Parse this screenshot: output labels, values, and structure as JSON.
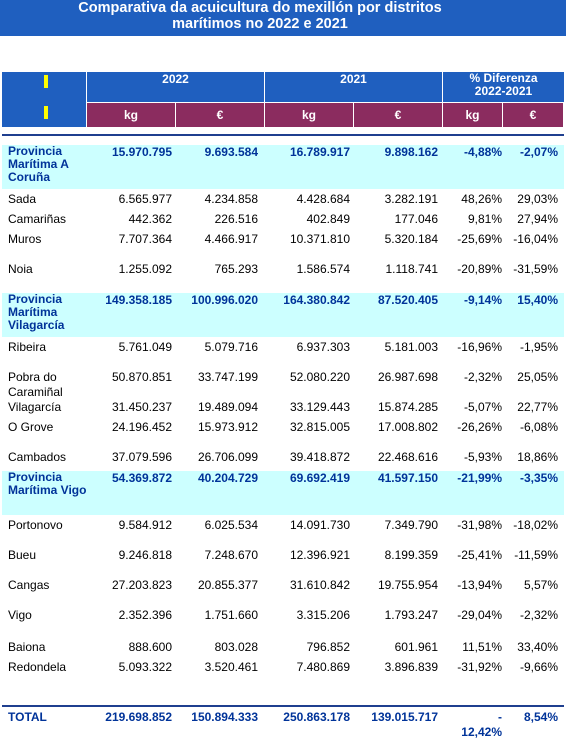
{
  "title": {
    "line1": "Comparativa da acuicultura do mexillón por distritos",
    "line2": "marítimos no 2022 e 2021"
  },
  "header": {
    "year_2022": "2022",
    "year_2021": "2021",
    "diff_line1": "% Diferenza",
    "diff_line2": "2022-2021",
    "kg": "kg",
    "eur": "€"
  },
  "colors": {
    "header_blue": "#1f5fbf",
    "unit_purple": "#8b2c5f",
    "province_bg": "#ccffff",
    "province_text": "#003399",
    "marker_yellow": "#ffff00"
  },
  "rows": [
    {
      "name": "Provincia Marítima A Coruña",
      "type": "province",
      "kg2022": "15.970.795",
      "eur2022": "9.693.584",
      "kg2021": "16.789.917",
      "eur2021": "9.898.162",
      "pct_kg": "-4,88%",
      "pct_eur": "-2,07%"
    },
    {
      "name": "Sada",
      "type": "district",
      "kg2022": "6.565.977",
      "eur2022": "4.234.858",
      "kg2021": "4.428.684",
      "eur2021": "3.282.191",
      "pct_kg": "48,26%",
      "pct_eur": "29,03%"
    },
    {
      "name": "Camariñas",
      "type": "district",
      "kg2022": "442.362",
      "eur2022": "226.516",
      "kg2021": "402.849",
      "eur2021": "177.046",
      "pct_kg": "9,81%",
      "pct_eur": "27,94%"
    },
    {
      "name": "Muros",
      "type": "district",
      "kg2022": "7.707.364",
      "eur2022": "4.466.917",
      "kg2021": "10.371.810",
      "eur2021": "5.320.184",
      "pct_kg": "-25,69%",
      "pct_eur": "-16,04%"
    },
    {
      "name": "Noia",
      "type": "district",
      "kg2022": "1.255.092",
      "eur2022": "765.293",
      "kg2021": "1.586.574",
      "eur2021": "1.118.741",
      "pct_kg": "-20,89%",
      "pct_eur": "-31,59%"
    },
    {
      "name": "Provincia Marítima Vilagarcía",
      "type": "province",
      "kg2022": "149.358.185",
      "eur2022": "100.996.020",
      "kg2021": "164.380.842",
      "eur2021": "87.520.405",
      "pct_kg": "-9,14%",
      "pct_eur": "15,40%"
    },
    {
      "name": "Ribeira",
      "type": "district",
      "kg2022": "5.761.049",
      "eur2022": "5.079.716",
      "kg2021": "6.937.303",
      "eur2021": "5.181.003",
      "pct_kg": "-16,96%",
      "pct_eur": "-1,95%"
    },
    {
      "name": "Pobra do Caramiñal",
      "type": "district",
      "kg2022": "50.870.851",
      "eur2022": "33.747.199",
      "kg2021": "52.080.220",
      "eur2021": "26.987.698",
      "pct_kg": "-2,32%",
      "pct_eur": "25,05%"
    },
    {
      "name": "Vilagarcía",
      "type": "district",
      "kg2022": "31.450.237",
      "eur2022": "19.489.094",
      "kg2021": "33.129.443",
      "eur2021": "15.874.285",
      "pct_kg": "-5,07%",
      "pct_eur": "22,77%"
    },
    {
      "name": "O Grove",
      "type": "district",
      "kg2022": "24.196.452",
      "eur2022": "15.973.912",
      "kg2021": "32.815.005",
      "eur2021": "17.008.802",
      "pct_kg": "-26,26%",
      "pct_eur": "-6,08%"
    },
    {
      "name": "Cambados",
      "type": "district",
      "kg2022": "37.079.596",
      "eur2022": "26.706.099",
      "kg2021": "39.418.872",
      "eur2021": "22.468.616",
      "pct_kg": "-5,93%",
      "pct_eur": "18,86%"
    },
    {
      "name": "Provincia Marítima Vigo",
      "type": "province",
      "kg2022": "54.369.872",
      "eur2022": "40.204.729",
      "kg2021": "69.692.419",
      "eur2021": "41.597.150",
      "pct_kg": "-21,99%",
      "pct_eur": "-3,35%"
    },
    {
      "name": "Portonovo",
      "type": "district",
      "kg2022": "9.584.912",
      "eur2022": "6.025.534",
      "kg2021": "14.091.730",
      "eur2021": "7.349.790",
      "pct_kg": "-31,98%",
      "pct_eur": "-18,02%"
    },
    {
      "name": "Bueu",
      "type": "district",
      "kg2022": "9.246.818",
      "eur2022": "7.248.670",
      "kg2021": "12.396.921",
      "eur2021": "8.199.359",
      "pct_kg": "-25,41%",
      "pct_eur": "-11,59%"
    },
    {
      "name": "Cangas",
      "type": "district",
      "kg2022": "27.203.823",
      "eur2022": "20.855.377",
      "kg2021": "31.610.842",
      "eur2021": "19.755.954",
      "pct_kg": "-13,94%",
      "pct_eur": "5,57%"
    },
    {
      "name": "Vigo",
      "type": "district",
      "kg2022": "2.352.396",
      "eur2022": "1.751.660",
      "kg2021": "3.315.206",
      "eur2021": "1.793.247",
      "pct_kg": "-29,04%",
      "pct_eur": "-2,32%"
    },
    {
      "name": "Baiona",
      "type": "district",
      "kg2022": "888.600",
      "eur2022": "803.028",
      "kg2021": "796.852",
      "eur2021": "601.961",
      "pct_kg": "11,51%",
      "pct_eur": "33,40%"
    },
    {
      "name": "Redondela",
      "type": "district",
      "kg2022": "5.093.322",
      "eur2022": "3.520.461",
      "kg2021": "7.480.869",
      "eur2021": "3.896.839",
      "pct_kg": "-31,92%",
      "pct_eur": "-9,66%"
    }
  ],
  "total": {
    "name": "TOTAL",
    "kg2022": "219.698.852",
    "eur2022": "150.894.333",
    "kg2021": "250.863.178",
    "eur2021": "139.015.717",
    "pct_kg": "-12,42%",
    "pct_eur": "8,54%"
  }
}
